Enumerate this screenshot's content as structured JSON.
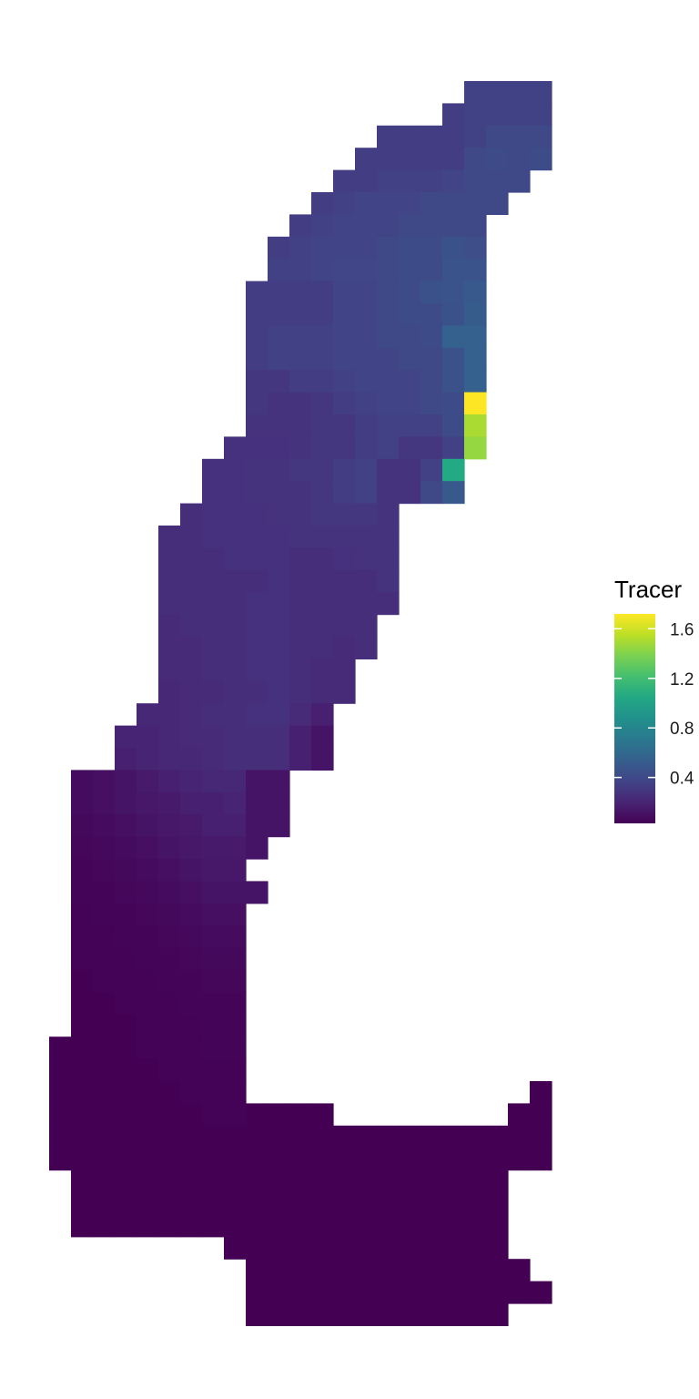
{
  "chart_data": {
    "type": "heatmap",
    "title": "",
    "xlabel": "",
    "ylabel": "",
    "grid": false,
    "axes_visible": false,
    "legend": {
      "title": "Tracer",
      "placement": "right",
      "colormap": "viridis",
      "range": [
        0.03,
        1.72
      ],
      "ticks": [
        0.4,
        0.8,
        1.2,
        1.6
      ],
      "tick_labels": [
        "0.4",
        "0.8",
        "1.2",
        "1.6"
      ]
    },
    "grid_shape": {
      "rows": 56,
      "cols": 23
    },
    "rows": [
      {
        "row": 0,
        "start": 19,
        "values": [
          0.36,
          0.36,
          0.36,
          0.36
        ]
      },
      {
        "row": 1,
        "start": 18,
        "values": [
          0.33,
          0.36,
          0.36,
          0.36,
          0.36
        ]
      },
      {
        "row": 2,
        "start": 15,
        "values": [
          0.33,
          0.33,
          0.33,
          0.33,
          0.36,
          0.4,
          0.4,
          0.4
        ]
      },
      {
        "row": 3,
        "start": 14,
        "values": [
          0.33,
          0.33,
          0.33,
          0.33,
          0.33,
          0.4,
          0.42,
          0.4,
          0.42
        ]
      },
      {
        "row": 4,
        "start": 13,
        "values": [
          0.33,
          0.33,
          0.35,
          0.35,
          0.35,
          0.37,
          0.4,
          0.4,
          0.4
        ]
      },
      {
        "row": 5,
        "start": 12,
        "values": [
          0.33,
          0.35,
          0.37,
          0.37,
          0.37,
          0.4,
          0.4,
          0.4,
          0.4
        ]
      },
      {
        "row": 6,
        "start": 11,
        "values": [
          0.33,
          0.35,
          0.37,
          0.37,
          0.37,
          0.4,
          0.4,
          0.4,
          0.4
        ]
      },
      {
        "row": 7,
        "start": 10,
        "values": [
          0.33,
          0.35,
          0.37,
          0.37,
          0.37,
          0.4,
          0.42,
          0.42,
          0.45,
          0.43
        ]
      },
      {
        "row": 8,
        "start": 10,
        "values": [
          0.35,
          0.35,
          0.37,
          0.38,
          0.38,
          0.4,
          0.42,
          0.42,
          0.47,
          0.47
        ]
      },
      {
        "row": 9,
        "start": 9,
        "values": [
          0.33,
          0.33,
          0.33,
          0.33,
          0.37,
          0.37,
          0.4,
          0.42,
          0.45,
          0.47,
          0.5
        ]
      },
      {
        "row": 10,
        "start": 9,
        "values": [
          0.33,
          0.33,
          0.33,
          0.33,
          0.37,
          0.37,
          0.4,
          0.42,
          0.42,
          0.45,
          0.52
        ]
      },
      {
        "row": 11,
        "start": 9,
        "values": [
          0.33,
          0.35,
          0.35,
          0.35,
          0.37,
          0.37,
          0.4,
          0.4,
          0.42,
          0.55,
          0.55
        ]
      },
      {
        "row": 12,
        "start": 9,
        "values": [
          0.33,
          0.35,
          0.35,
          0.35,
          0.37,
          0.37,
          0.37,
          0.4,
          0.4,
          0.45,
          0.55
        ]
      },
      {
        "row": 13,
        "start": 9,
        "values": [
          0.3,
          0.3,
          0.33,
          0.33,
          0.35,
          0.37,
          0.37,
          0.37,
          0.4,
          0.45,
          0.55
        ]
      },
      {
        "row": 14,
        "start": 9,
        "values": [
          0.3,
          0.28,
          0.28,
          0.3,
          0.33,
          0.35,
          0.37,
          0.37,
          0.4,
          0.42,
          1.72
        ]
      },
      {
        "row": 15,
        "start": 9,
        "values": [
          0.28,
          0.28,
          0.28,
          0.3,
          0.3,
          0.33,
          0.35,
          0.35,
          0.35,
          0.42,
          1.5
        ]
      },
      {
        "row": 16,
        "start": 8,
        "values": [
          0.27,
          0.27,
          0.27,
          0.28,
          0.3,
          0.3,
          0.33,
          0.35,
          0.3,
          0.3,
          0.35,
          1.45
        ]
      },
      {
        "row": 17,
        "start": 7,
        "values": [
          0.27,
          0.27,
          0.28,
          0.28,
          0.3,
          0.3,
          0.33,
          0.35,
          0.28,
          0.28,
          0.35,
          1.05
        ]
      },
      {
        "row": 18,
        "start": 7,
        "values": [
          0.27,
          0.27,
          0.28,
          0.28,
          0.28,
          0.3,
          0.33,
          0.35,
          0.28,
          0.28,
          0.4,
          0.5
        ]
      },
      {
        "row": 19,
        "start": 6,
        "values": [
          0.25,
          0.27,
          0.27,
          0.27,
          0.28,
          0.28,
          0.3,
          0.3,
          0.3,
          0.28
        ]
      },
      {
        "row": 20,
        "start": 5,
        "values": [
          0.25,
          0.25,
          0.27,
          0.27,
          0.27,
          0.27,
          0.28,
          0.28,
          0.28,
          0.28,
          0.28
        ]
      },
      {
        "row": 21,
        "start": 5,
        "values": [
          0.25,
          0.25,
          0.25,
          0.27,
          0.27,
          0.27,
          0.25,
          0.25,
          0.27,
          0.28,
          0.28
        ]
      },
      {
        "row": 22,
        "start": 5,
        "values": [
          0.25,
          0.25,
          0.25,
          0.25,
          0.25,
          0.27,
          0.25,
          0.25,
          0.25,
          0.25,
          0.28
        ]
      },
      {
        "row": 23,
        "start": 5,
        "values": [
          0.25,
          0.25,
          0.25,
          0.25,
          0.27,
          0.27,
          0.25,
          0.25,
          0.25,
          0.25,
          0.25
        ]
      },
      {
        "row": 24,
        "start": 5,
        "values": [
          0.23,
          0.25,
          0.25,
          0.25,
          0.27,
          0.27,
          0.25,
          0.25,
          0.25,
          0.25
        ]
      },
      {
        "row": 25,
        "start": 5,
        "values": [
          0.23,
          0.23,
          0.25,
          0.25,
          0.27,
          0.27,
          0.25,
          0.25,
          0.23,
          0.25
        ]
      },
      {
        "row": 26,
        "start": 5,
        "values": [
          0.23,
          0.23,
          0.25,
          0.25,
          0.27,
          0.27,
          0.25,
          0.23,
          0.23
        ]
      },
      {
        "row": 27,
        "start": 5,
        "values": [
          0.22,
          0.23,
          0.23,
          0.25,
          0.25,
          0.27,
          0.25,
          0.23,
          0.23
        ]
      },
      {
        "row": 28,
        "start": 4,
        "values": [
          0.22,
          0.22,
          0.23,
          0.25,
          0.25,
          0.27,
          0.27,
          0.23,
          0.18
        ]
      },
      {
        "row": 29,
        "start": 3,
        "values": [
          0.2,
          0.2,
          0.22,
          0.23,
          0.23,
          0.25,
          0.25,
          0.25,
          0.18,
          0.12
        ]
      },
      {
        "row": 30,
        "start": 3,
        "values": [
          0.18,
          0.2,
          0.22,
          0.22,
          0.23,
          0.25,
          0.25,
          0.25,
          0.18,
          0.12
        ]
      },
      {
        "row": 31,
        "start": 1,
        "values": [
          0.08,
          0.1,
          0.12,
          0.15,
          0.18,
          0.2,
          0.22,
          0.22,
          0.12,
          0.12
        ]
      },
      {
        "row": 32,
        "start": 1,
        "values": [
          0.08,
          0.1,
          0.12,
          0.14,
          0.15,
          0.18,
          0.18,
          0.2,
          0.12,
          0.12
        ]
      },
      {
        "row": 33,
        "start": 1,
        "values": [
          0.07,
          0.08,
          0.1,
          0.12,
          0.14,
          0.15,
          0.18,
          0.18,
          0.12,
          0.12
        ]
      },
      {
        "row": 34,
        "start": 1,
        "values": [
          0.06,
          0.07,
          0.08,
          0.1,
          0.12,
          0.14,
          0.15,
          0.15,
          0.12
        ]
      },
      {
        "row": 35,
        "start": 1,
        "values": [
          0.05,
          0.06,
          0.07,
          0.08,
          0.1,
          0.12,
          0.14,
          0.14
        ]
      },
      {
        "row": 36,
        "start": 1,
        "values": [
          0.05,
          0.05,
          0.06,
          0.07,
          0.08,
          0.1,
          0.12,
          0.12,
          0.12
        ]
      },
      {
        "row": 37,
        "start": 1,
        "values": [
          0.04,
          0.05,
          0.05,
          0.06,
          0.07,
          0.08,
          0.1,
          0.1
        ]
      },
      {
        "row": 38,
        "start": 1,
        "values": [
          0.04,
          0.04,
          0.05,
          0.05,
          0.06,
          0.07,
          0.08,
          0.08
        ]
      },
      {
        "row": 39,
        "start": 1,
        "values": [
          0.04,
          0.04,
          0.04,
          0.05,
          0.05,
          0.06,
          0.07,
          0.07
        ]
      },
      {
        "row": 40,
        "start": 1,
        "values": [
          0.03,
          0.04,
          0.04,
          0.04,
          0.05,
          0.05,
          0.06,
          0.06
        ]
      },
      {
        "row": 41,
        "start": 1,
        "values": [
          0.03,
          0.03,
          0.04,
          0.04,
          0.04,
          0.05,
          0.05,
          0.05
        ]
      },
      {
        "row": 42,
        "start": 1,
        "values": [
          0.03,
          0.03,
          0.03,
          0.04,
          0.04,
          0.04,
          0.05,
          0.05
        ]
      },
      {
        "row": 43,
        "start": 0,
        "values": [
          0.03,
          0.03,
          0.03,
          0.03,
          0.04,
          0.04,
          0.04,
          0.05,
          0.05
        ]
      },
      {
        "row": 44,
        "start": 0,
        "values": [
          0.03,
          0.03,
          0.03,
          0.03,
          0.03,
          0.04,
          0.04,
          0.04,
          0.04
        ]
      },
      {
        "row": 45,
        "start": 0,
        "values": [
          0.03,
          0.03,
          0.03,
          0.03,
          0.03,
          0.03,
          0.04,
          0.04,
          0.04
        ],
        "extra": [
          {
            "start": 22,
            "values": [
              0.03
            ]
          }
        ]
      },
      {
        "row": 46,
        "start": 0,
        "values": [
          0.03,
          0.03,
          0.03,
          0.03,
          0.03,
          0.03,
          0.03,
          0.04,
          0.04,
          0.03,
          0.03,
          0.03,
          0.03
        ],
        "extra": [
          {
            "start": 21,
            "values": [
              0.03,
              0.03
            ]
          }
        ]
      },
      {
        "row": 47,
        "start": 0,
        "values": [
          0.03,
          0.03,
          0.03,
          0.03,
          0.03,
          0.03,
          0.03,
          0.03,
          0.03,
          0.03,
          0.03,
          0.03,
          0.03,
          0.03,
          0.03,
          0.03,
          0.03,
          0.03,
          0.03,
          0.03,
          0.03,
          0.03,
          0.03
        ]
      },
      {
        "row": 48,
        "start": 0,
        "values": [
          0.03,
          0.03,
          0.03,
          0.03,
          0.03,
          0.03,
          0.03,
          0.03,
          0.03,
          0.03,
          0.03,
          0.03,
          0.03,
          0.03,
          0.03,
          0.03,
          0.03,
          0.03,
          0.03,
          0.03,
          0.03,
          0.03,
          0.03
        ]
      },
      {
        "row": 49,
        "start": 1,
        "values": [
          0.03,
          0.03,
          0.03,
          0.03,
          0.03,
          0.03,
          0.03,
          0.03,
          0.03,
          0.03,
          0.03,
          0.03,
          0.03,
          0.03,
          0.03,
          0.03,
          0.03,
          0.03,
          0.03,
          0.03
        ]
      },
      {
        "row": 50,
        "start": 1,
        "values": [
          0.03,
          0.03,
          0.03,
          0.03,
          0.03,
          0.03,
          0.03,
          0.03,
          0.03,
          0.03,
          0.03,
          0.03,
          0.03,
          0.03,
          0.03,
          0.03,
          0.03,
          0.03,
          0.03,
          0.03
        ]
      },
      {
        "row": 51,
        "start": 1,
        "values": [
          0.03,
          0.03,
          0.03,
          0.03,
          0.03,
          0.03,
          0.03,
          0.03,
          0.03,
          0.03,
          0.03,
          0.03,
          0.03,
          0.03,
          0.03,
          0.03,
          0.03,
          0.03,
          0.03,
          0.03
        ]
      },
      {
        "row": 52,
        "start": 8,
        "values": [
          0.03,
          0.03,
          0.03,
          0.03,
          0.03,
          0.03,
          0.03,
          0.03,
          0.03,
          0.03,
          0.03,
          0.03,
          0.03
        ]
      },
      {
        "row": 53,
        "start": 9,
        "values": [
          0.03,
          0.03,
          0.03,
          0.03,
          0.03,
          0.03,
          0.03,
          0.03,
          0.03,
          0.03,
          0.03,
          0.03,
          0.03
        ]
      },
      {
        "row": 54,
        "start": 9,
        "values": [
          0.03,
          0.03,
          0.03,
          0.03,
          0.03,
          0.03,
          0.03,
          0.03,
          0.03,
          0.03,
          0.03,
          0.03,
          0.03,
          0.03
        ]
      },
      {
        "row": 55,
        "start": 9,
        "values": [
          0.03,
          0.03,
          0.03,
          0.03,
          0.03,
          0.03,
          0.03,
          0.03,
          0.03,
          0.03,
          0.03,
          0.03
        ]
      }
    ]
  }
}
